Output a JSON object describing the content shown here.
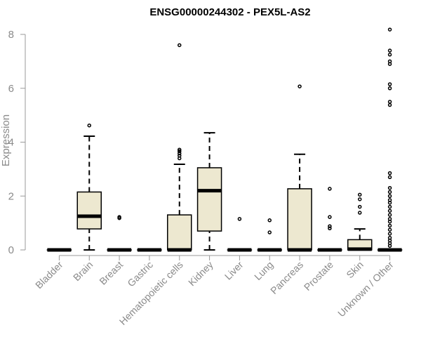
{
  "chart_data": {
    "type": "boxplot",
    "title": "ENSG00000244302 - PEX5L-AS2",
    "ylabel": "Expression",
    "xlabel": "",
    "ylim": [
      0,
      8
    ],
    "yticks": [
      0,
      2,
      4,
      6,
      8
    ],
    "box_fill": "#EDE8D0",
    "categories": [
      "Bladder",
      "Brain",
      "Breast",
      "Gastric",
      "Hematopoietic cells",
      "Kidney",
      "Liver",
      "Lung",
      "Pancreas",
      "Prostate",
      "Skin",
      "Unknown / Other"
    ],
    "boxes": [
      {
        "q1": 0,
        "median": 0,
        "q3": 0,
        "whisker_low": 0,
        "whisker_high": 0,
        "outliers": []
      },
      {
        "q1": 0.78,
        "median": 1.25,
        "q3": 2.15,
        "whisker_low": 0,
        "whisker_high": 4.22,
        "outliers": [
          4.62
        ]
      },
      {
        "q1": 0,
        "median": 0,
        "q3": 0,
        "whisker_low": 0,
        "whisker_high": 0,
        "outliers": [
          1.18,
          1.22
        ]
      },
      {
        "q1": 0,
        "median": 0,
        "q3": 0,
        "whisker_low": 0,
        "whisker_high": 0,
        "outliers": []
      },
      {
        "q1": 0,
        "median": 0,
        "q3": 1.3,
        "whisker_low": 0,
        "whisker_high": 3.18,
        "outliers": [
          3.4,
          3.5,
          3.58,
          3.66,
          3.72,
          7.6
        ]
      },
      {
        "q1": 0.7,
        "median": 2.2,
        "q3": 3.05,
        "whisker_low": 0,
        "whisker_high": 4.35,
        "outliers": []
      },
      {
        "q1": 0,
        "median": 0,
        "q3": 0,
        "whisker_low": 0,
        "whisker_high": 0,
        "outliers": [
          1.15
        ]
      },
      {
        "q1": 0,
        "median": 0,
        "q3": 0,
        "whisker_low": 0,
        "whisker_high": 0,
        "outliers": [
          0.65,
          1.1
        ]
      },
      {
        "q1": 0,
        "median": 0,
        "q3": 2.27,
        "whisker_low": 0,
        "whisker_high": 3.55,
        "outliers": [
          6.07
        ]
      },
      {
        "q1": 0,
        "median": 0,
        "q3": 0,
        "whisker_low": 0,
        "whisker_high": 0,
        "outliers": [
          0.8,
          0.88,
          1.22,
          2.27
        ]
      },
      {
        "q1": 0,
        "median": 0.03,
        "q3": 0.38,
        "whisker_low": 0,
        "whisker_high": 0.78,
        "outliers": [
          1.38,
          1.6,
          1.88,
          2.05
        ]
      },
      {
        "q1": 0,
        "median": 0,
        "q3": 0,
        "whisker_low": 0,
        "whisker_high": 0,
        "outliers": [
          0.15,
          0.25,
          0.35,
          0.45,
          0.6,
          0.75,
          0.9,
          1.05,
          1.15,
          1.3,
          1.45,
          1.6,
          1.75,
          1.85,
          2.0,
          2.15,
          2.3,
          2.7,
          2.85,
          5.38,
          5.5,
          6.0,
          6.15,
          6.9,
          7.0,
          7.25,
          7.4,
          8.18
        ]
      }
    ]
  }
}
